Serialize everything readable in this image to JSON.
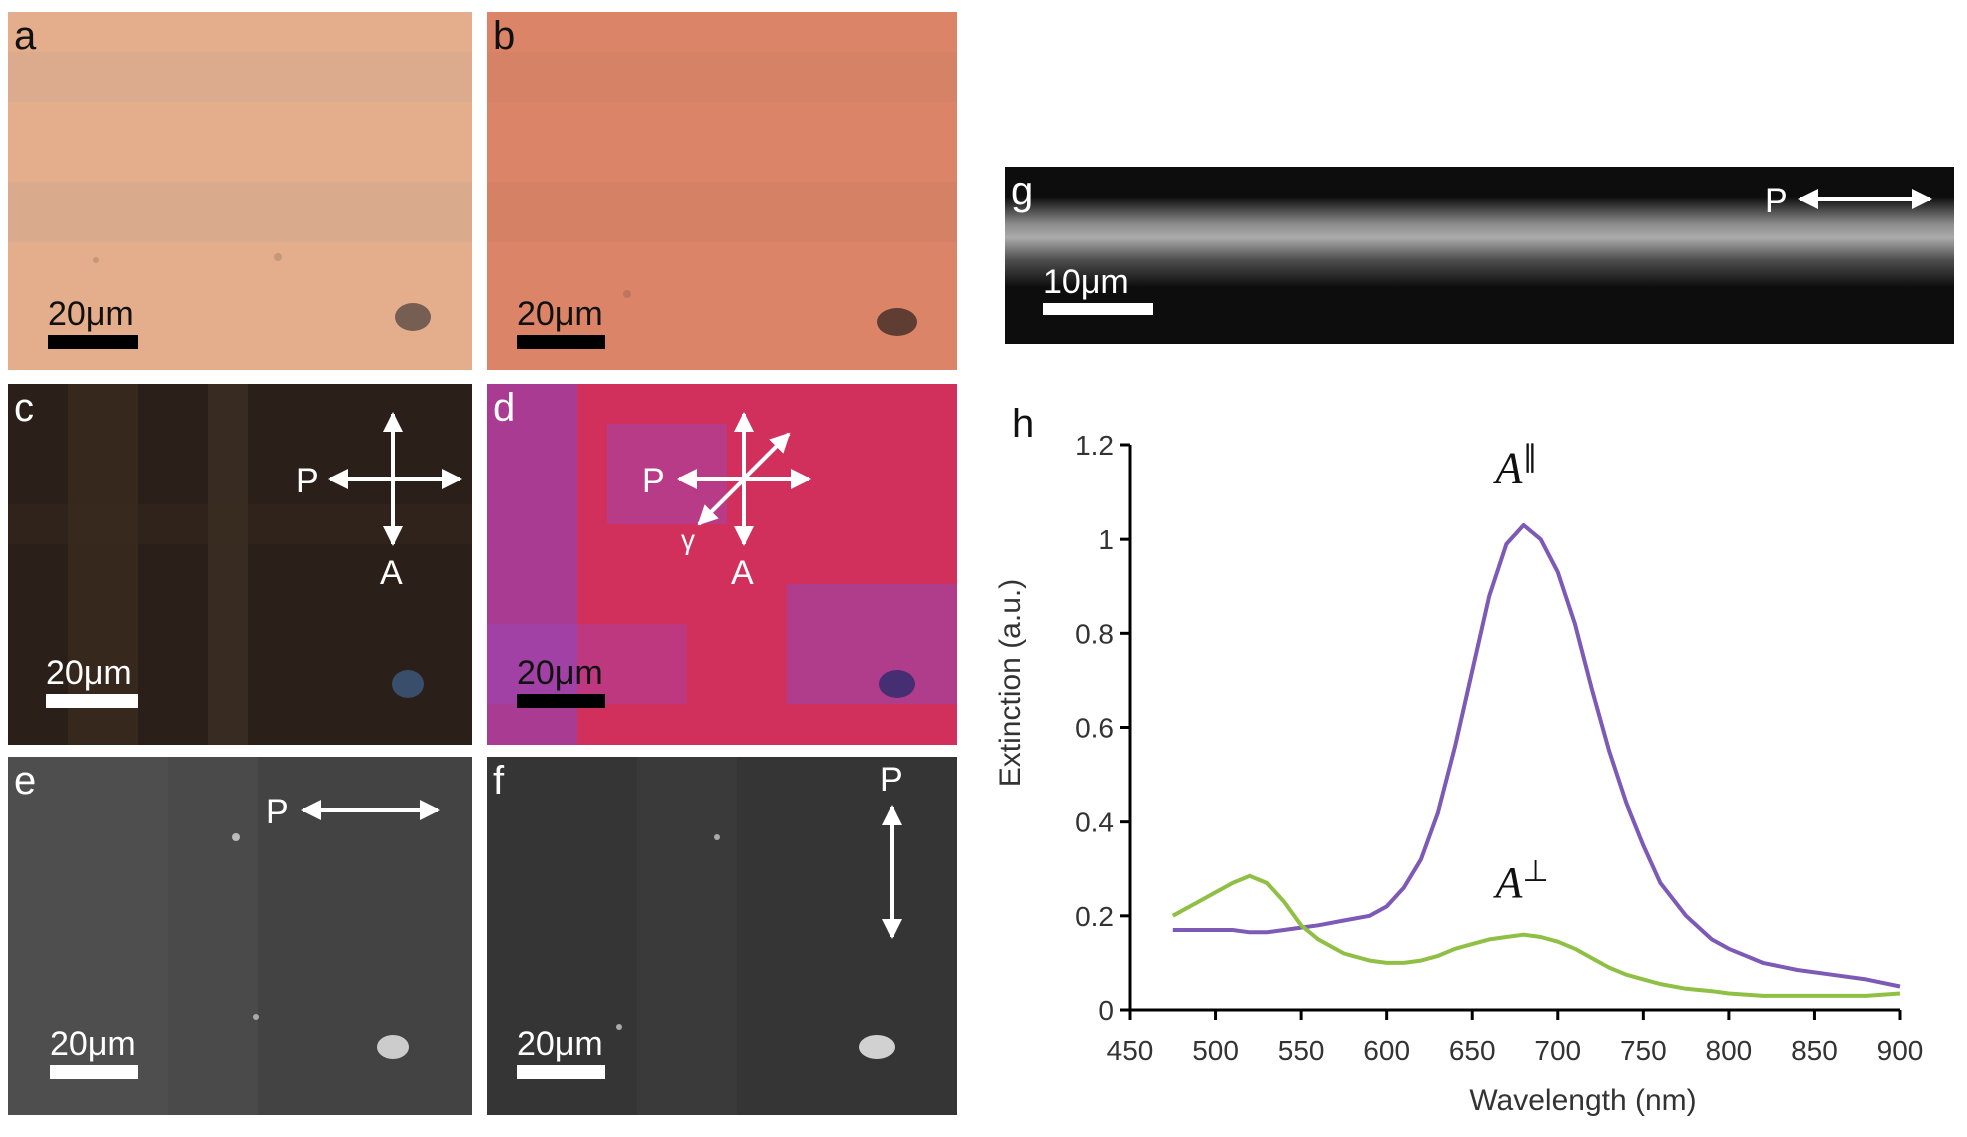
{
  "panels": {
    "a": {
      "label": "a",
      "scalebar": "20μm"
    },
    "b": {
      "label": "b",
      "scalebar": "20μm"
    },
    "c": {
      "label": "c",
      "scalebar": "20μm",
      "polarizer": "P",
      "analyzer": "A"
    },
    "d": {
      "label": "d",
      "scalebar": "20μm",
      "polarizer": "P",
      "analyzer": "A",
      "waveplate": "γ"
    },
    "e": {
      "label": "e",
      "scalebar": "20μm",
      "polarizer": "P"
    },
    "f": {
      "label": "f",
      "scalebar": "20μm",
      "polarizer": "P"
    },
    "g": {
      "label": "g",
      "scalebar": "10μm",
      "polarizer": "P"
    },
    "h": {
      "label": "h"
    }
  },
  "chart_data": {
    "type": "line",
    "xlabel": "Wavelength (nm)",
    "ylabel": "Extinction (a.u.)",
    "xlim": [
      450,
      900
    ],
    "ylim": [
      0,
      1.2
    ],
    "xticks": [
      450,
      500,
      550,
      600,
      650,
      700,
      750,
      800,
      850,
      900
    ],
    "yticks": [
      0,
      0.2,
      0.4,
      0.6,
      0.8,
      1,
      1.2
    ],
    "ytick_labels": [
      "0",
      "0.2",
      "0.4",
      "0.6",
      "0.8",
      "1",
      "1.2"
    ],
    "x": [
      475,
      490,
      500,
      510,
      520,
      530,
      540,
      550,
      560,
      575,
      590,
      600,
      610,
      620,
      630,
      640,
      650,
      660,
      670,
      680,
      690,
      700,
      710,
      720,
      730,
      740,
      750,
      760,
      775,
      790,
      800,
      820,
      840,
      860,
      880,
      900
    ],
    "series": [
      {
        "name": "A∥",
        "label_main": "A",
        "label_sup": "∥",
        "color": "#7d5ab5",
        "values": [
          0.17,
          0.17,
          0.17,
          0.17,
          0.165,
          0.165,
          0.17,
          0.175,
          0.18,
          0.19,
          0.2,
          0.22,
          0.26,
          0.32,
          0.42,
          0.56,
          0.72,
          0.88,
          0.99,
          1.03,
          1.0,
          0.93,
          0.82,
          0.68,
          0.55,
          0.44,
          0.35,
          0.27,
          0.2,
          0.15,
          0.13,
          0.1,
          0.085,
          0.075,
          0.065,
          0.05
        ]
      },
      {
        "name": "A⊥",
        "label_main": "A",
        "label_sup": "⊥",
        "color": "#8fc045",
        "values": [
          0.2,
          0.23,
          0.25,
          0.27,
          0.285,
          0.27,
          0.23,
          0.18,
          0.15,
          0.12,
          0.105,
          0.1,
          0.1,
          0.105,
          0.115,
          0.13,
          0.14,
          0.15,
          0.155,
          0.16,
          0.155,
          0.145,
          0.13,
          0.11,
          0.09,
          0.075,
          0.065,
          0.055,
          0.045,
          0.04,
          0.035,
          0.03,
          0.03,
          0.03,
          0.03,
          0.035
        ]
      }
    ]
  }
}
